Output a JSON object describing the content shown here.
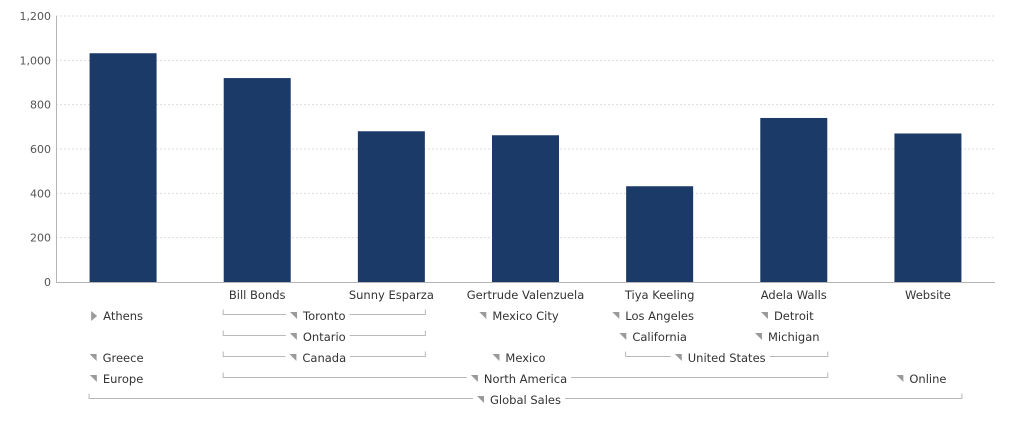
{
  "chart_data": {
    "type": "bar",
    "title": "",
    "xlabel": "",
    "ylabel": "",
    "ylim": [
      0,
      1200
    ],
    "yticks": [
      0,
      200,
      400,
      600,
      800,
      1000,
      1200
    ],
    "ytick_labels": [
      "0",
      "200",
      "400",
      "600",
      "800",
      "1,000",
      "1,200"
    ],
    "grid": true,
    "bar_color": "#1b3a68",
    "categories": [
      "",
      "Bill Bonds",
      "Sunny Esparza",
      "Gertrude Valenzuela",
      "Tiya Keeling",
      "Adela Walls",
      "Website"
    ],
    "values": [
      1032,
      920,
      680,
      662,
      432,
      740,
      670
    ],
    "hierarchy": [
      [
        {
          "label": "Athens",
          "from": 0,
          "to": 0,
          "icon": "expand-triangle-icon"
        },
        {
          "label": "Toronto",
          "from": 1,
          "to": 2,
          "icon": "collapse-triangle-icon"
        },
        {
          "label": "Mexico City",
          "from": 3,
          "to": 3,
          "icon": "collapse-triangle-icon"
        },
        {
          "label": "Los Angeles",
          "from": 4,
          "to": 4,
          "icon": "collapse-triangle-icon"
        },
        {
          "label": "Detroit",
          "from": 5,
          "to": 5,
          "icon": "collapse-triangle-icon"
        }
      ],
      [
        {
          "label": "Ontario",
          "from": 1,
          "to": 2,
          "icon": "collapse-triangle-icon"
        },
        {
          "label": "California",
          "from": 4,
          "to": 4,
          "icon": "collapse-triangle-icon"
        },
        {
          "label": "Michigan",
          "from": 5,
          "to": 5,
          "icon": "collapse-triangle-icon"
        }
      ],
      [
        {
          "label": "Greece",
          "from": 0,
          "to": 0,
          "icon": "collapse-triangle-icon"
        },
        {
          "label": "Canada",
          "from": 1,
          "to": 2,
          "icon": "collapse-triangle-icon"
        },
        {
          "label": "Mexico",
          "from": 3,
          "to": 3,
          "icon": "collapse-triangle-icon"
        },
        {
          "label": "United States",
          "from": 4,
          "to": 5,
          "icon": "collapse-triangle-icon"
        }
      ],
      [
        {
          "label": "Europe",
          "from": 0,
          "to": 0,
          "icon": "collapse-triangle-icon"
        },
        {
          "label": "North America",
          "from": 1,
          "to": 5,
          "icon": "collapse-triangle-icon"
        },
        {
          "label": "Online",
          "from": 6,
          "to": 6,
          "icon": "collapse-triangle-icon"
        }
      ],
      [
        {
          "label": "Global Sales",
          "from": 0,
          "to": 6,
          "icon": "collapse-triangle-icon"
        }
      ]
    ]
  }
}
